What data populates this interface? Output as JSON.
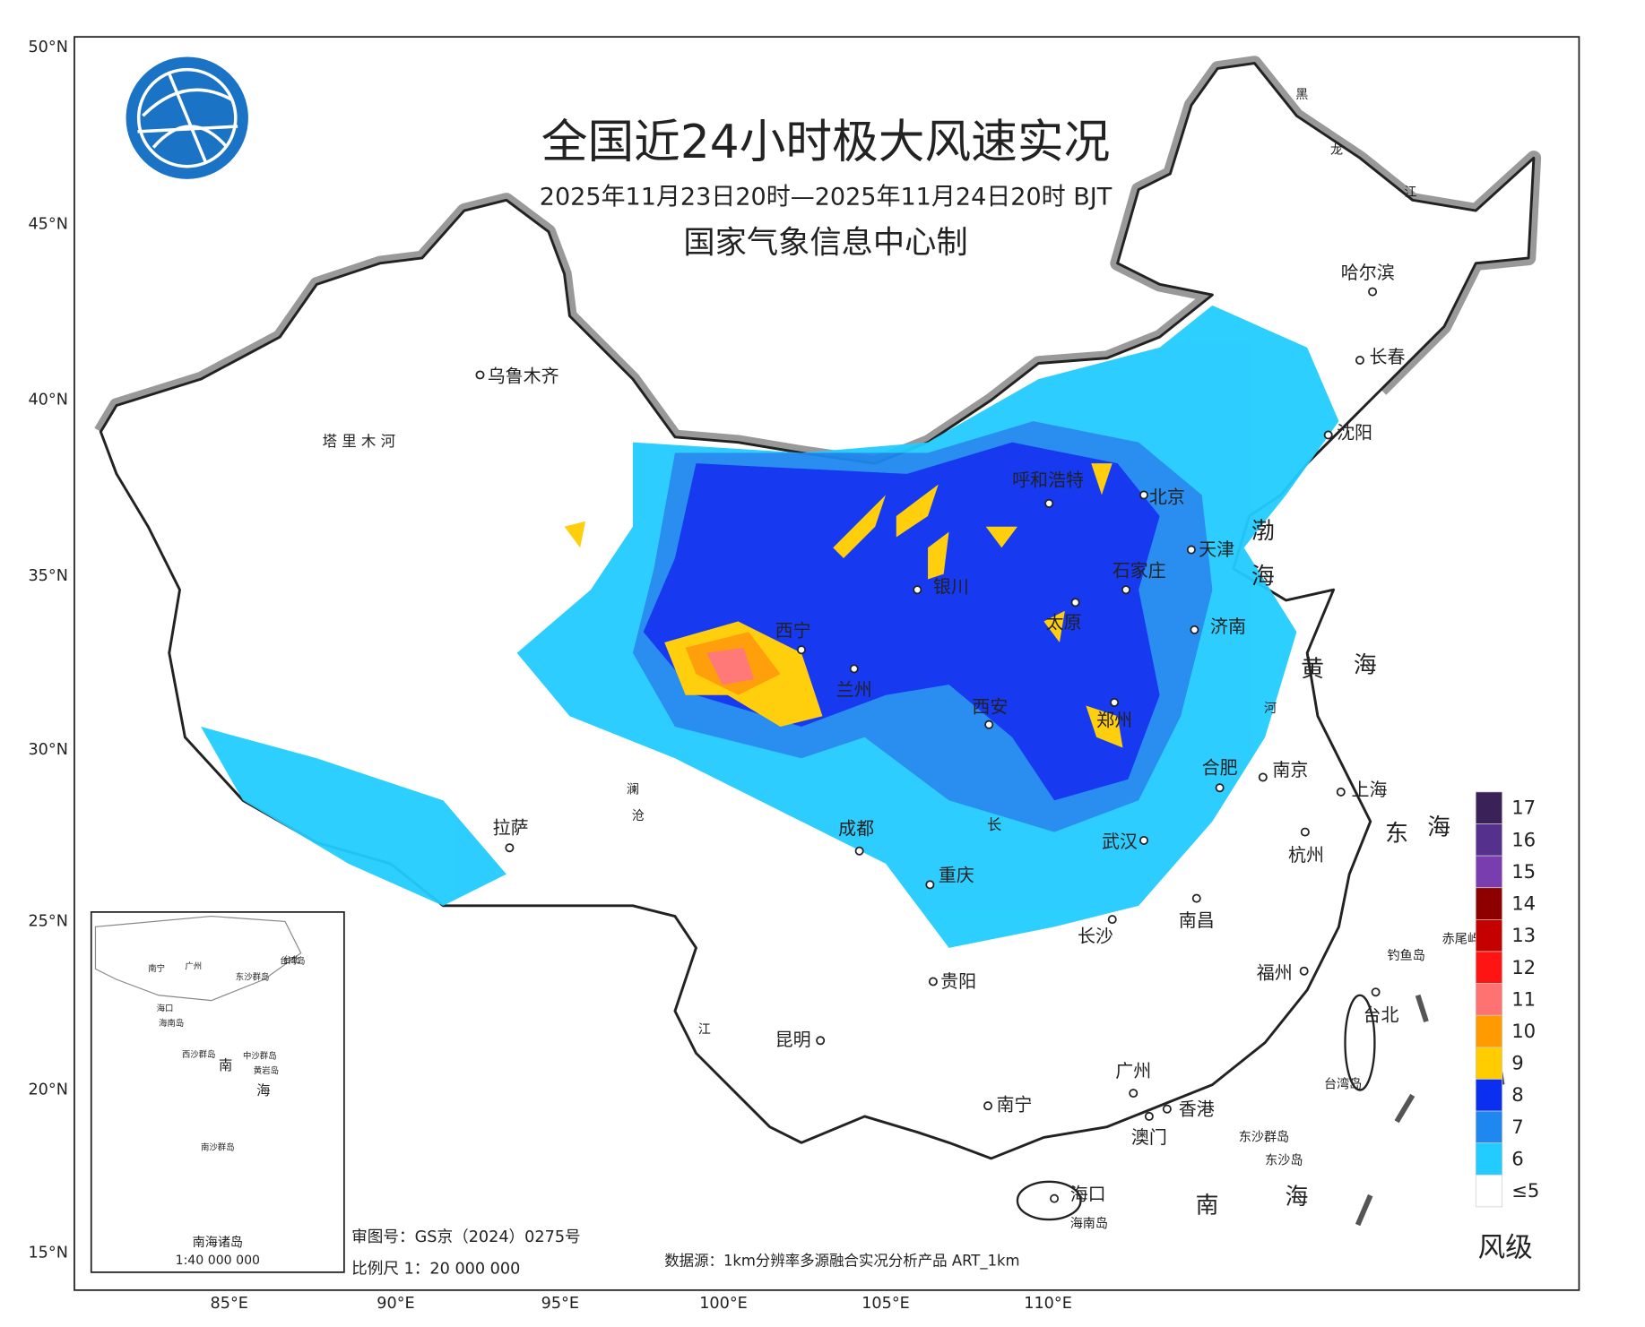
{
  "header": {
    "title": "全国近24小时极大风速实况",
    "subtitle": "2025年11月23日20时—2025年11月24日20时 BJT",
    "producer": "国家气象信息中心制"
  },
  "axes": {
    "lat_labels": [
      "50°N",
      "45°N",
      "40°N",
      "35°N",
      "30°N",
      "25°N",
      "20°N",
      "15°N"
    ],
    "lon_labels": [
      "85°E",
      "90°E",
      "95°E",
      "100°E",
      "105°E",
      "110°E"
    ]
  },
  "cities": [
    "乌鲁木齐",
    "呼和浩特",
    "北京",
    "天津",
    "石家庄",
    "太原",
    "济南",
    "西宁",
    "兰州",
    "银川",
    "西安",
    "郑州",
    "合肥",
    "南京",
    "上海",
    "拉萨",
    "成都",
    "重庆",
    "武汉",
    "杭州",
    "长沙",
    "南昌",
    "贵阳",
    "福州",
    "台北",
    "昆明",
    "广州",
    "南宁",
    "香港",
    "澳门",
    "海口",
    "哈尔滨",
    "长春",
    "沈阳"
  ],
  "places": [
    "海南岛",
    "东沙群岛",
    "东沙岛",
    "台湾岛",
    "钓鱼岛",
    "赤尾屿"
  ],
  "seas": [
    "渤",
    "海",
    "黄",
    "海",
    "东",
    "海",
    "南",
    "海"
  ],
  "rivers": [
    "塔 里 木 河",
    "黑",
    "龙",
    "江",
    "长",
    "澜",
    "沧",
    "江",
    "河"
  ],
  "legend": {
    "title": "风级",
    "levels": [
      {
        "label": "17",
        "color": "#3a2158"
      },
      {
        "label": "16",
        "color": "#55308c"
      },
      {
        "label": "15",
        "color": "#7a3db0"
      },
      {
        "label": "14",
        "color": "#8e0000"
      },
      {
        "label": "13",
        "color": "#c40000"
      },
      {
        "label": "12",
        "color": "#ff1414"
      },
      {
        "label": "11",
        "color": "#ff7272"
      },
      {
        "label": "10",
        "color": "#ff9a00"
      },
      {
        "label": "9",
        "color": "#ffcc00"
      },
      {
        "label": "8",
        "color": "#0b2ff0"
      },
      {
        "label": "7",
        "color": "#1e88f0"
      },
      {
        "label": "6",
        "color": "#22ccff"
      },
      {
        "label": "≤5",
        "color": "#ffffff"
      }
    ]
  },
  "inset": {
    "labels": [
      "南宁",
      "广州",
      "台北",
      "台湾岛",
      "海口",
      "海南岛",
      "东沙群岛",
      "西沙群岛",
      "中沙群岛",
      "黄岩岛",
      "南",
      "海",
      "南沙群岛"
    ],
    "title": "南海诸岛",
    "scale": "1:40 000 000"
  },
  "footer": {
    "approval": "审图号：GS京（2024）0275号",
    "scale": "比例尺 1：20 000 000",
    "source": "数据源：1km分辨率多源融合实况分析产品 ART_1km"
  }
}
